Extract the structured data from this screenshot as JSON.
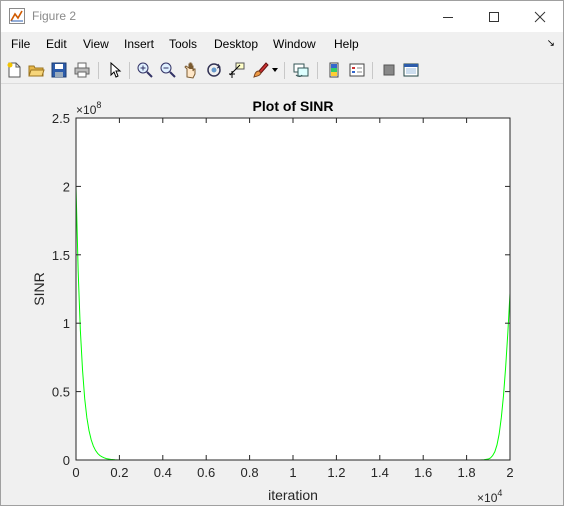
{
  "window": {
    "title": "Figure 2",
    "icons": [
      "matlab-figure-icon",
      "minimize-icon",
      "maximize-icon",
      "close-icon"
    ]
  },
  "menu": {
    "items": [
      "File",
      "Edit",
      "View",
      "Insert",
      "Tools",
      "Desktop",
      "Window",
      "Help"
    ],
    "overflow_icon": "dock-arrow-icon"
  },
  "toolbar": {
    "buttons": [
      "new-figure",
      "open-file",
      "save-figure",
      "print-figure",
      "edit-plot",
      "zoom-in",
      "zoom-out",
      "pan",
      "rotate-3d",
      "data-cursor",
      "brush",
      "link-plot",
      "insert-colorbar",
      "insert-legend",
      "hide-plot-tools",
      "show-plot-tools"
    ]
  },
  "chart_data": {
    "type": "line",
    "title": "Plot of SINR",
    "xlabel": "iteration",
    "ylabel": "SINR",
    "xlim": [
      0,
      20000
    ],
    "ylim": [
      0,
      250000000
    ],
    "x_ticks": [
      "0",
      "0.2",
      "0.4",
      "0.6",
      "0.8",
      "1",
      "1.2",
      "1.4",
      "1.6",
      "1.8",
      "2"
    ],
    "y_ticks": [
      "0",
      "0.5",
      "1",
      "1.5",
      "2",
      "2.5"
    ],
    "x_exponent": "10",
    "x_exponent_power": "4",
    "y_exponent": "10",
    "y_exponent_power": "8",
    "exponent_prefix": "×",
    "grid": false,
    "series": [
      {
        "color": "#00ff00",
        "x": [
          0,
          100,
          200,
          300,
          400,
          500,
          600,
          700,
          800,
          900,
          1000,
          1100,
          1200,
          1300,
          1400,
          1600,
          1800,
          2000,
          4000,
          6000,
          8000,
          10000,
          12000,
          14000,
          16000,
          18000,
          18600,
          18800,
          19000,
          19100,
          19200,
          19300,
          19400,
          19500,
          19600,
          19700,
          19800,
          19900,
          20000
        ],
        "y": [
          200000000,
          138000000,
          95000000,
          66000000,
          45000000,
          31000000,
          21500000,
          14800000,
          10200000,
          7000000,
          4800000,
          3300000,
          2300000,
          1600000,
          1000000,
          500000,
          200000,
          0,
          0,
          0,
          0,
          0,
          0,
          0,
          0,
          0,
          0,
          150000,
          700000,
          1500000,
          3200000,
          6000000,
          11000000,
          19000000,
          31000000,
          47000000,
          68000000,
          93000000,
          122000000
        ]
      },
      {
        "color": "#0000ff",
        "x": [
          0,
          20000
        ],
        "y": [
          0,
          0
        ]
      }
    ]
  }
}
